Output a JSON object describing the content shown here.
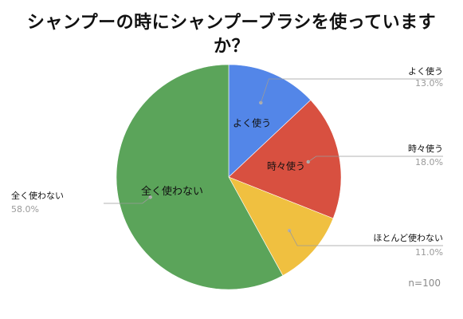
{
  "chart_data": {
    "type": "pie",
    "title": [
      "シャンプーの時にシャンプーブラシを使っています",
      "か？"
    ],
    "categories": [
      "よく使う",
      "時々使う",
      "ほとんど使わない",
      "全く使わない"
    ],
    "values": [
      13.0,
      18.0,
      11.0,
      58.0
    ],
    "value_labels": [
      "13.0%",
      "18.0%",
      "11.0%",
      "58.0%"
    ],
    "colors": [
      "#5386e8",
      "#d85040",
      "#f0c040",
      "#5ba45a"
    ],
    "inside_labels": [
      "よく使う",
      "時々使う",
      "",
      "全く使わない"
    ],
    "note": "n=100",
    "start": "12 o'clock, clockwise"
  }
}
